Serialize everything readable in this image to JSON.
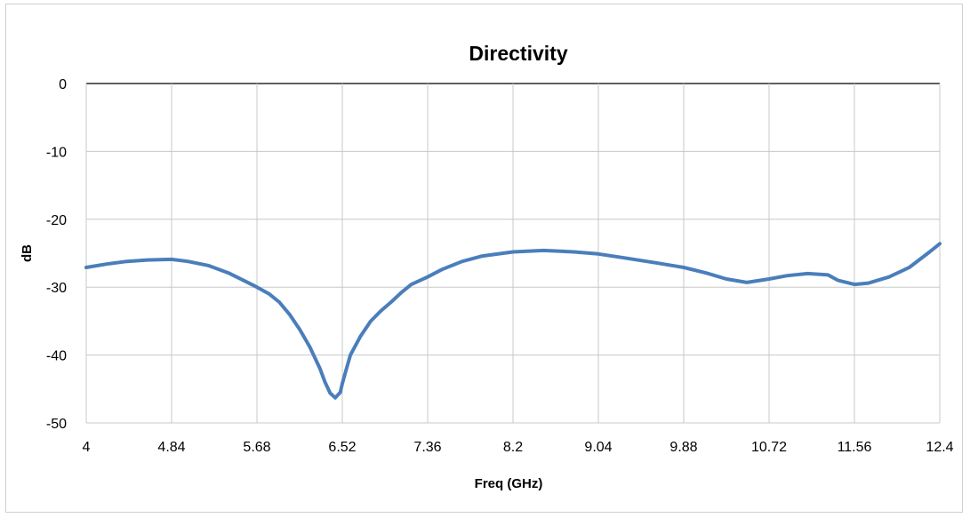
{
  "chart_data": {
    "type": "line",
    "title": "Directivity",
    "xlabel": "Freq (GHz)",
    "ylabel": "dB",
    "xlim": [
      4,
      12.4
    ],
    "ylim": [
      -50,
      0
    ],
    "x_ticks": [
      "4",
      "4.84",
      "5.68",
      "6.52",
      "7.36",
      "8.2",
      "9.04",
      "9.88",
      "10.72",
      "11.56",
      "12.4"
    ],
    "y_ticks": [
      "0",
      "-10",
      "-20",
      "-30",
      "-40",
      "-50"
    ],
    "grid": true,
    "legend": "none",
    "series": [
      {
        "color": "#4a7ebb",
        "x": [
          4.0,
          4.2,
          4.4,
          4.6,
          4.84,
          5.0,
          5.2,
          5.4,
          5.6,
          5.68,
          5.8,
          5.9,
          6.0,
          6.1,
          6.2,
          6.3,
          6.35,
          6.4,
          6.45,
          6.5,
          6.52,
          6.55,
          6.6,
          6.7,
          6.8,
          6.9,
          7.0,
          7.1,
          7.2,
          7.36,
          7.5,
          7.7,
          7.9,
          8.2,
          8.5,
          8.8,
          9.04,
          9.3,
          9.6,
          9.88,
          10.1,
          10.3,
          10.5,
          10.72,
          10.9,
          11.1,
          11.3,
          11.4,
          11.56,
          11.7,
          11.9,
          12.1,
          12.3,
          12.4
        ],
        "y": [
          -27.1,
          -26.6,
          -26.2,
          -26.0,
          -25.9,
          -26.2,
          -26.8,
          -27.9,
          -29.4,
          -30.0,
          -31.0,
          -32.2,
          -34.0,
          -36.2,
          -38.8,
          -42.0,
          -44.0,
          -45.6,
          -46.3,
          -45.5,
          -44.2,
          -42.6,
          -40.0,
          -37.2,
          -35.0,
          -33.5,
          -32.2,
          -30.8,
          -29.6,
          -28.5,
          -27.4,
          -26.2,
          -25.4,
          -24.8,
          -24.6,
          -24.8,
          -25.1,
          -25.7,
          -26.4,
          -27.1,
          -27.9,
          -28.8,
          -29.3,
          -28.8,
          -28.3,
          -28.0,
          -28.2,
          -29.0,
          -29.6,
          -29.4,
          -28.5,
          -27.1,
          -24.8,
          -23.6
        ]
      }
    ]
  }
}
